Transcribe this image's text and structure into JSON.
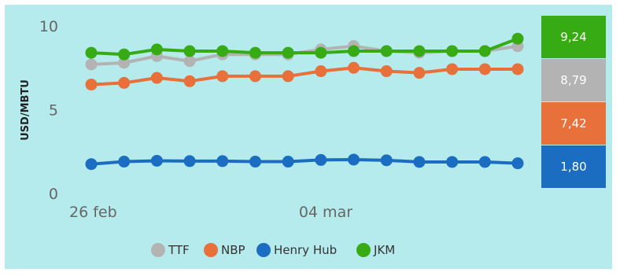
{
  "chart_data": {
    "type": "line",
    "ylabel": "USD/MBTU",
    "ylim": [
      0,
      10
    ],
    "yticks": [
      "0",
      "5",
      "10"
    ],
    "xtick_labels": [
      {
        "index": 0,
        "label": "26 feb"
      },
      {
        "index": 7,
        "label": "04 mar"
      }
    ],
    "series": [
      {
        "name": "TTF",
        "color": "#b3b3b3",
        "values": [
          7.7,
          7.8,
          8.2,
          7.9,
          8.3,
          8.3,
          8.3,
          8.6,
          8.8,
          8.5,
          8.4,
          8.5,
          8.5,
          8.79
        ]
      },
      {
        "name": "NBP",
        "color": "#e8703a",
        "values": [
          6.5,
          6.6,
          6.9,
          6.7,
          7.0,
          7.0,
          7.0,
          7.3,
          7.5,
          7.3,
          7.2,
          7.42,
          7.42,
          7.42
        ]
      },
      {
        "name": "Henry Hub",
        "color": "#1b6dc1",
        "values": [
          1.75,
          1.9,
          1.95,
          1.93,
          1.93,
          1.9,
          1.9,
          2.0,
          2.02,
          1.98,
          1.88,
          1.88,
          1.88,
          1.8
        ]
      },
      {
        "name": "JKM",
        "color": "#36ab13",
        "values": [
          8.4,
          8.3,
          8.6,
          8.5,
          8.5,
          8.4,
          8.4,
          8.4,
          8.5,
          8.5,
          8.5,
          8.5,
          8.5,
          9.24
        ]
      }
    ],
    "latest_cards": [
      {
        "series": "JKM",
        "label": "9,24",
        "color": "#36ab13"
      },
      {
        "series": "TTF",
        "label": "8,79",
        "color": "#b3b3b3"
      },
      {
        "series": "NBP",
        "label": "7,42",
        "color": "#e8703a"
      },
      {
        "series": "Henry Hub",
        "label": "1,80",
        "color": "#1b6dc1"
      }
    ],
    "legend": "bottom-center",
    "grid": false
  },
  "colors": {
    "background": "#b5ebed"
  }
}
